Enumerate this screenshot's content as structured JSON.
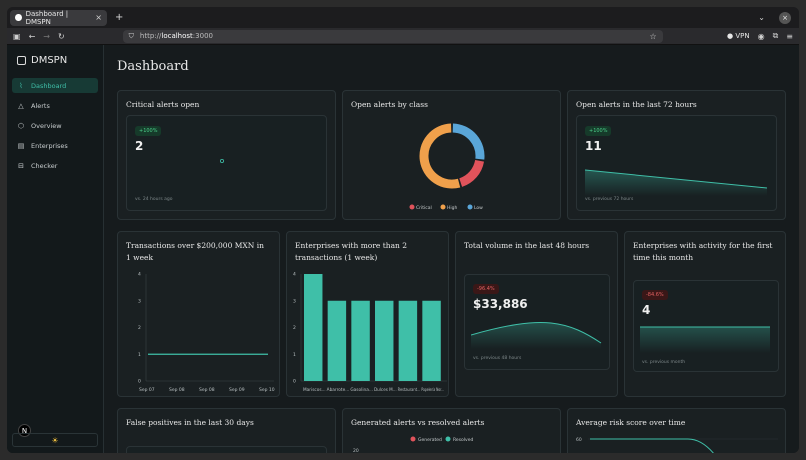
{
  "browser": {
    "tab_title": "Dashboard | DMSPN",
    "new_tab": "+",
    "url_prefix": "http://",
    "url_host": "localhost",
    "url_port": ":3000",
    "vpn_label": "VPN"
  },
  "sidebar": {
    "brand": "DMSPN",
    "items": [
      {
        "label": "Dashboard",
        "icon": "chart-line-icon",
        "active": true
      },
      {
        "label": "Alerts",
        "icon": "warning-icon",
        "active": false
      },
      {
        "label": "Overview",
        "icon": "hexagon-icon",
        "active": false
      },
      {
        "label": "Enterprises",
        "icon": "building-icon",
        "active": false
      },
      {
        "label": "Checker",
        "icon": "briefcase-icon",
        "active": false
      }
    ],
    "theme_icon": "sun-icon",
    "n_badge": "N"
  },
  "page": {
    "title": "Dashboard"
  },
  "cards": {
    "critical": {
      "title": "Critical alerts open",
      "badge": "+100%",
      "value": "2",
      "footer": "vs. 24 hours ago"
    },
    "by_class": {
      "title": "Open alerts by class",
      "legend": [
        "Critical",
        "High",
        "Low"
      ]
    },
    "last72": {
      "title": "Open alerts in the last 72 hours",
      "badge": "+100%",
      "value": "11",
      "footer": "vs. previous 72 hours"
    },
    "transactions": {
      "title": "Transactions over $200,000 MXN in 1 week"
    },
    "enterprises2": {
      "title": "Enterprises with more than 2 transactions (1 week)"
    },
    "volume48": {
      "title": "Total volume in the last 48 hours",
      "badge": "-96.4%",
      "value": "$33,886",
      "footer": "vs. previous 48 hours"
    },
    "firsttime": {
      "title": "Enterprises with activity for the first time this month",
      "badge": "-84.6%",
      "value": "4",
      "footer": "vs. previous month"
    },
    "falsepos": {
      "title": "False positives in the last 30 days"
    },
    "gen_vs_res": {
      "title": "Generated alerts vs resolved alerts",
      "legend": [
        "Generated",
        "Resolved"
      ],
      "y_top": "20"
    },
    "risk": {
      "title": "Average risk score over time",
      "y_top": "60"
    }
  },
  "colors": {
    "accent": "#3fbfa8",
    "critical": "#e0535b",
    "high": "#f0a04b",
    "low": "#5aa6d8"
  },
  "chart_data": [
    {
      "type": "pie",
      "title": "Open alerts by class",
      "categories": [
        "Critical",
        "High",
        "Low"
      ],
      "values": [
        2,
        6,
        3
      ]
    },
    {
      "type": "line",
      "title": "Transactions over $200,000 MXN in 1 week",
      "categories": [
        "Sep 07",
        "Sep 08",
        "Sep 08",
        "Sep 09",
        "Sep 10"
      ],
      "values": [
        1,
        1,
        1,
        1,
        1
      ],
      "ylim": [
        0,
        4
      ],
      "yticks": [
        "0",
        "1",
        "2",
        "3",
        "4"
      ]
    },
    {
      "type": "bar",
      "title": "Enterprises with more than 2 transactions (1 week)",
      "categories": [
        "Mariscos...",
        "Abarrote...",
        "Gasolina...",
        "Dulces M...",
        "Restaurant...",
        "Papelería Nor..."
      ],
      "values": [
        4,
        3,
        3,
        3,
        3,
        3
      ],
      "ylim": [
        0,
        4
      ],
      "yticks": [
        "0",
        "1",
        "2",
        "3",
        "4"
      ]
    }
  ]
}
